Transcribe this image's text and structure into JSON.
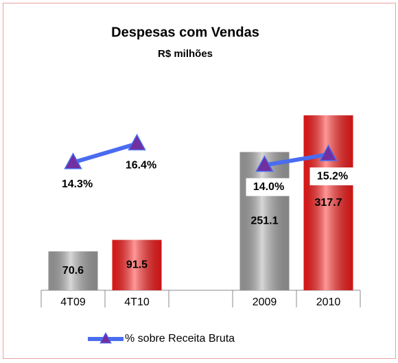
{
  "chart_data": {
    "type": "bar_line",
    "title": "Despesas com Vendas",
    "subtitle": "R$ milhões",
    "categories": [
      "4T09",
      "4T10",
      null,
      "2009",
      "2010"
    ],
    "series": [
      {
        "type": "bar",
        "colors": [
          "#a6a6a6",
          "#ff1a1a",
          null,
          "#a6a6a6",
          "#ff1a1a"
        ],
        "values": [
          70.6,
          91.5,
          null,
          251.1,
          317.7
        ]
      },
      {
        "type": "line",
        "name": "% sobre Receita Bruta",
        "color": "#4a6cf0",
        "marker_color": "#7030a0",
        "axis": "y2",
        "values": [
          14.3,
          16.4,
          null,
          14.0,
          15.2
        ],
        "value_labels": [
          "14.3%",
          "16.4%",
          null,
          "14.0%",
          "15.2%"
        ]
      }
    ],
    "ylim": [
      0,
      349
    ],
    "y2lim": [
      0,
      21.5
    ],
    "legend": "bottom"
  }
}
